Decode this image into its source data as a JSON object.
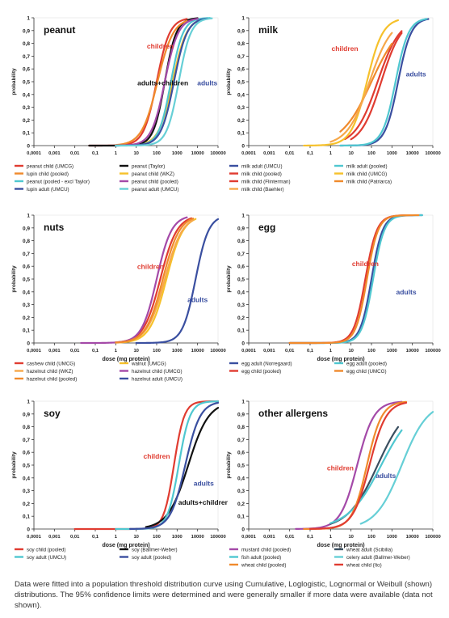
{
  "y_ticks": [
    "0",
    "0,1",
    "0,2",
    "0,3",
    "0,4",
    "0,5",
    "0,6",
    "0,7",
    "0,8",
    "0,9",
    "1"
  ],
  "x_ticks": [
    "0,0001",
    "0,001",
    "0,01",
    "0,1",
    "1",
    "10",
    "100",
    "1000",
    "10000",
    "100000"
  ],
  "ylabel": "probability",
  "xlabel": "dose (mg protein)",
  "caption": "Data were fitted into a population threshold distribution curve using Cumulative, Loglogistic, Lognormal or Weibull (shown) distributions. The 95% confidence limits were determined and were generally smaller if more data were available (data not shown).",
  "chart_data": [
    {
      "type": "line",
      "title": "peanut",
      "xlabel": "",
      "ylabel": "probability",
      "x_scale": "log",
      "xlim": [
        0.0001,
        100000
      ],
      "ylim": [
        0,
        1
      ],
      "annotations": [
        {
          "text": "children",
          "color": "#e03c31",
          "x": 150,
          "y": 0.76
        },
        {
          "text": "adults+children",
          "color": "#111111",
          "x": 200,
          "y": 0.47
        },
        {
          "text": "adults",
          "color": "#3a4fa0",
          "x": 30000,
          "y": 0.47
        }
      ],
      "series": [
        {
          "name": "peanut child (UMCG)",
          "color": "#e03c31",
          "median": 100,
          "slope": 0.7,
          "xmin": 0.05,
          "xmax": 3000
        },
        {
          "name": "peanut (Taylor)",
          "color": "#111111",
          "median": 250,
          "slope": 0.62,
          "xmin": 0.05,
          "xmax": 10000
        },
        {
          "name": "lupin child (pooled)",
          "color": "#f08a2c",
          "median": 110,
          "slope": 0.85,
          "xmin": 1,
          "xmax": 3000
        },
        {
          "name": "peanut child (WKZ)",
          "color": "#f6c12b",
          "median": 600,
          "slope": 0.75,
          "xmin": 30,
          "xmax": 20000
        },
        {
          "name": "peanut (pooled - excl Taylor)",
          "color": "#4fc7d0",
          "median": 500,
          "slope": 0.65,
          "xmin": 1,
          "xmax": 40000
        },
        {
          "name": "peanut child (pooled)",
          "color": "#a44aa8",
          "median": 250,
          "slope": 0.72,
          "xmin": 1,
          "xmax": 10000
        },
        {
          "name": "lupin adult (UMCU)",
          "color": "#3a4fa0",
          "median": 700,
          "slope": 0.7,
          "xmin": 1,
          "xmax": 30000
        },
        {
          "name": "peanut adult (UMCU)",
          "color": "#66cfd6",
          "median": 1200,
          "slope": 0.65,
          "xmin": 1,
          "xmax": 50000
        }
      ]
    },
    {
      "type": "line",
      "title": "milk",
      "xlabel": "",
      "ylabel": "probability",
      "x_scale": "log",
      "xlim": [
        0.0001,
        100000
      ],
      "ylim": [
        0,
        1
      ],
      "annotations": [
        {
          "text": "children",
          "color": "#e03c31",
          "x": 5,
          "y": 0.74
        },
        {
          "text": "adults",
          "color": "#3a4fa0",
          "x": 15000,
          "y": 0.54
        }
      ],
      "series": [
        {
          "name": "milk adult (UMCU)",
          "color": "#3a4fa0",
          "median": 2000,
          "slope": 0.7,
          "xmin": 3,
          "xmax": 60000
        },
        {
          "name": "milk adult (pooled)",
          "color": "#4fc7d0",
          "median": 1500,
          "slope": 0.7,
          "xmin": 3,
          "xmax": 50000
        },
        {
          "name": "milk child (pooled)",
          "color": "#e03c31",
          "median": 200,
          "slope": 1.2,
          "xmin": 5,
          "xmax": 3000
        },
        {
          "name": "milk child (UMCG)",
          "color": "#f6c12b",
          "median": 60,
          "slope": 0.85,
          "xmin": 0.05,
          "xmax": 2000
        },
        {
          "name": "milk child (Flinterman)",
          "color": "#e03c31",
          "median": 300,
          "slope": 1.1,
          "xmin": 10,
          "xmax": 3000
        },
        {
          "name": "milk child (Patriarca)",
          "color": "#f08a2c",
          "median": 100,
          "slope": 1.6,
          "xmin": 3,
          "xmax": 1000
        },
        {
          "name": "milk child (Baehler)",
          "color": "#f6a84a",
          "median": 80,
          "slope": 1.2,
          "xmin": 1,
          "xmax": 1000
        }
      ]
    },
    {
      "type": "line",
      "title": "nuts",
      "xlabel": "dose (mg protein)",
      "ylabel": "probability",
      "x_scale": "log",
      "xlim": [
        0.0001,
        100000
      ],
      "ylim": [
        0,
        1
      ],
      "annotations": [
        {
          "text": "children",
          "color": "#e03c31",
          "x": 50,
          "y": 0.58
        },
        {
          "text": "adults",
          "color": "#3a4fa0",
          "x": 10000,
          "y": 0.32
        }
      ],
      "series": [
        {
          "name": "cashew child (UMCG)",
          "color": "#e03c31",
          "median": 150,
          "slope": 0.9,
          "xmin": 1,
          "xmax": 5000
        },
        {
          "name": "walnut (UMCG)",
          "color": "#f6c12b",
          "median": 300,
          "slope": 0.9,
          "xmin": 1,
          "xmax": 8000
        },
        {
          "name": "hazelnut child (WKZ)",
          "color": "#f6a84a",
          "median": 250,
          "slope": 0.95,
          "xmin": 1,
          "xmax": 6000
        },
        {
          "name": "hazelnut child (UMCG)",
          "color": "#a44aa8",
          "median": 100,
          "slope": 0.8,
          "xmin": 0.02,
          "xmax": 3000
        },
        {
          "name": "hazelnut child (pooled)",
          "color": "#f08a2c",
          "median": 200,
          "slope": 0.9,
          "xmin": 1,
          "xmax": 6000
        },
        {
          "name": "hazelnut adult (UMCU)",
          "color": "#3a4fa0",
          "median": 8000,
          "slope": 0.7,
          "xmin": 10,
          "xmax": 100000
        }
      ]
    },
    {
      "type": "line",
      "title": "egg",
      "xlabel": "dose (mg protein)",
      "ylabel": "probability",
      "x_scale": "log",
      "xlim": [
        0.0001,
        100000
      ],
      "ylim": [
        0,
        1
      ],
      "annotations": [
        {
          "text": "children",
          "color": "#e03c31",
          "x": 50,
          "y": 0.6
        },
        {
          "text": "adults",
          "color": "#3a4fa0",
          "x": 5000,
          "y": 0.38
        }
      ],
      "series": [
        {
          "name": "egg adult (Norregaard)",
          "color": "#3a4fa0",
          "median": 100,
          "slope": 0.6,
          "xmin": 0.01,
          "xmax": 30000
        },
        {
          "name": "egg adult (pooled)",
          "color": "#4fc7d0",
          "median": 120,
          "slope": 0.6,
          "xmin": 0.01,
          "xmax": 30000
        },
        {
          "name": "egg child (pooled)",
          "color": "#e03c31",
          "median": 50,
          "slope": 0.62,
          "xmin": 0.01,
          "xmax": 10000
        },
        {
          "name": "egg child (UMCG)",
          "color": "#f08a2c",
          "median": 60,
          "slope": 0.6,
          "xmin": 0.01,
          "xmax": 20000
        }
      ]
    },
    {
      "type": "line",
      "title": "soy",
      "xlabel": "dose (mg protein)",
      "ylabel": "probability",
      "x_scale": "log",
      "xlim": [
        0.0001,
        100000
      ],
      "ylim": [
        0,
        1
      ],
      "annotations": [
        {
          "text": "children",
          "color": "#e03c31",
          "x": 100,
          "y": 0.55
        },
        {
          "text": "adults",
          "color": "#3a4fa0",
          "x": 20000,
          "y": 0.34
        },
        {
          "text": "adults+children",
          "color": "#111111",
          "x": 20000,
          "y": 0.19
        }
      ],
      "series": [
        {
          "name": "soy child (pooled)",
          "color": "#e03c31",
          "median": 700,
          "slope": 0.55,
          "xmin": 0.01,
          "xmax": 100000
        },
        {
          "name": "soy (Ballmer-Weber)",
          "color": "#111111",
          "median": 3500,
          "slope": 1.1,
          "xmin": 30,
          "xmax": 100000
        },
        {
          "name": "soy adult (UMCU)",
          "color": "#4fc7d0",
          "median": 1200,
          "slope": 0.6,
          "xmin": 1,
          "xmax": 100000
        },
        {
          "name": "soy adult (pooled)",
          "color": "#3a4fa0",
          "median": 2500,
          "slope": 0.8,
          "xmin": 5,
          "xmax": 100000
        }
      ]
    },
    {
      "type": "line",
      "title": "other allergens",
      "xlabel": "dose (mg protein)",
      "ylabel": "probability",
      "x_scale": "log",
      "xlim": [
        0.0001,
        100000
      ],
      "ylim": [
        0,
        1
      ],
      "annotations": [
        {
          "text": "children",
          "color": "#e03c31",
          "x": 3,
          "y": 0.46
        },
        {
          "text": "adults",
          "color": "#3a4fa0",
          "x": 500,
          "y": 0.4
        }
      ],
      "series": [
        {
          "name": "mustard child (pooled)",
          "color": "#a44aa8",
          "median": 20,
          "slope": 0.9,
          "xmin": 0.02,
          "xmax": 3000
        },
        {
          "name": "wheat adult (Scibilia)",
          "color": "#3a4f60",
          "median": 200,
          "slope": 1.6,
          "xmin": 1,
          "xmax": 2000
        },
        {
          "name": "fish adult (pooled)",
          "color": "#4fc7d0",
          "median": 300,
          "slope": 1.8,
          "xmin": 1,
          "xmax": 3000
        },
        {
          "name": "celery adult (Ballmer-Weber)",
          "color": "#66cfd6",
          "median": 3000,
          "slope": 1.4,
          "xmin": 30,
          "xmax": 100000
        },
        {
          "name": "wheat child (pooled)",
          "color": "#f08a2c",
          "median": 60,
          "slope": 0.8,
          "xmin": 0.05,
          "xmax": 5000
        },
        {
          "name": "wheat child (Ito)",
          "color": "#e03c31",
          "median": 80,
          "slope": 0.9,
          "xmin": 0.1,
          "xmax": 5000
        }
      ]
    }
  ]
}
